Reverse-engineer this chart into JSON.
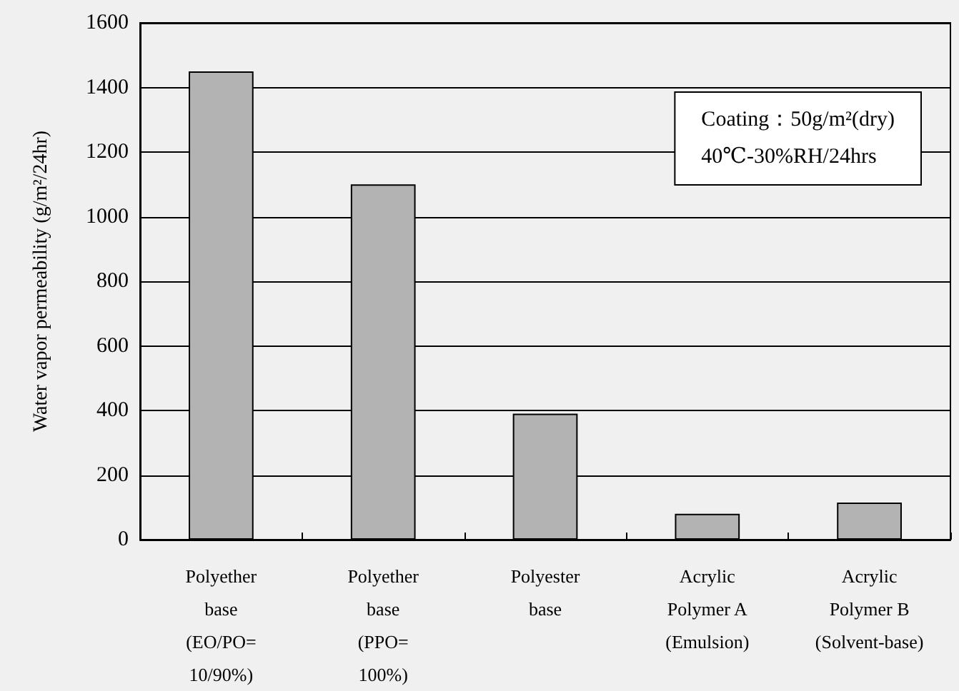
{
  "chart_data": {
    "type": "bar",
    "ylabel": "Water vapor permeability (g/m²/24hr)",
    "categories": [
      "Polyether\nbase\n(EO/PO=\n10/90%)",
      "Polyether\nbase\n(PPO=\n100%)",
      "Polyester\nbase",
      "Acrylic\nPolymer A\n(Emulsion)",
      "Acrylic\nPolymer B\n(Solvent-base)"
    ],
    "values": [
      1450,
      1100,
      390,
      80,
      115
    ],
    "color": "#b3b3b3",
    "ylim": [
      0,
      1600
    ],
    "yticks": [
      0,
      200,
      400,
      600,
      800,
      1000,
      1200,
      1400,
      1600
    ],
    "grid": "y",
    "annotations": [
      "Coating：50g/m²(dry)",
      "40℃-30%RH/24hrs"
    ]
  }
}
